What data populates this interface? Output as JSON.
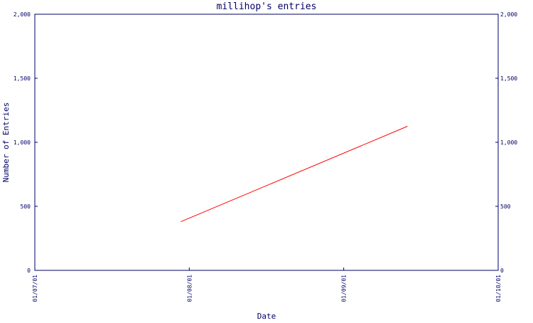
{
  "chart_data": {
    "type": "line",
    "title": "millihop's entries",
    "xlabel": "Date",
    "ylabel": "Number of Entries",
    "x_ticks": [
      "01/07/01",
      "01/08/01",
      "01/09/01",
      "01/10/01"
    ],
    "y_ticks": [
      "0",
      "500",
      "1,000",
      "1,500",
      "2,000"
    ],
    "ylim": [
      0,
      2000
    ],
    "xlim": [
      "2001-07-01",
      "2001-10-01"
    ],
    "grid": false,
    "legend": "none",
    "series": [
      {
        "color": "#ff0000",
        "points": [
          {
            "x": "2001-07-30",
            "y": 380
          },
          {
            "x": "2001-09-13",
            "y": 1125
          }
        ]
      }
    ],
    "colors": {
      "axis": "#000066",
      "text": "#000066",
      "line": "#ff0000",
      "background": "#ffffff"
    }
  }
}
